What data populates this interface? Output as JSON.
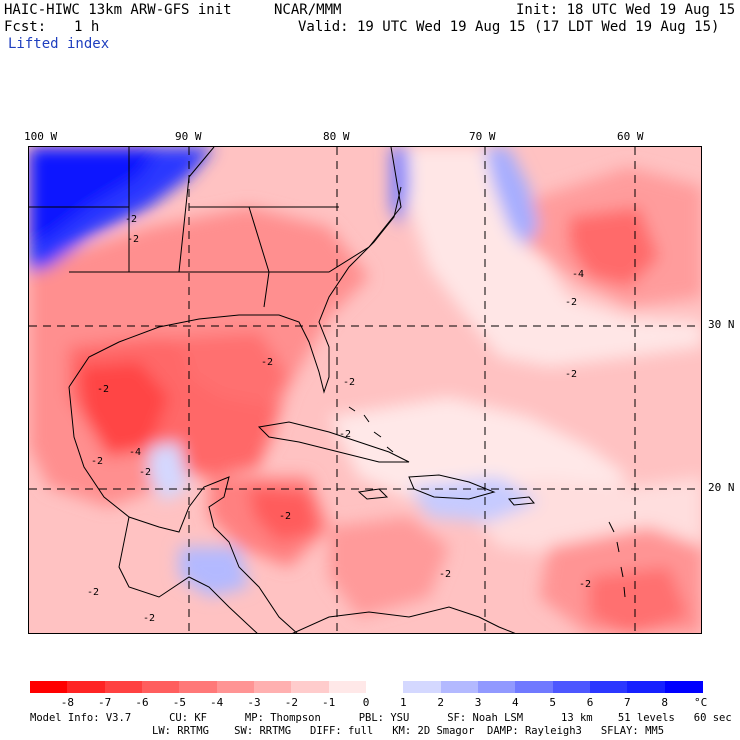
{
  "header": {
    "model_title": "HAIC-HIWC 13km ARW-GFS init",
    "org": "NCAR/MMM",
    "init": "Init: 18 UTC Wed 19 Aug 15",
    "fcst_label": "Fcst:",
    "fcst_value": "1 h",
    "valid": "Valid: 19 UTC Wed 19 Aug 15 (17 LDT Wed 19 Aug 15)",
    "field_name": "Lifted index"
  },
  "map": {
    "lon_labels": [
      "100 W",
      "90 W",
      "80 W",
      "70 W",
      "60 W"
    ],
    "lat_labels": [
      "30 N",
      "20 N"
    ],
    "contour_labels": [
      "-2",
      "-2",
      "-2",
      "-2",
      "-4",
      "-2",
      "-2",
      "-2",
      "-2",
      "-4",
      "-2",
      "-2",
      "-2",
      "-2",
      "-2",
      "-2",
      "-2"
    ]
  },
  "colorbar": {
    "unit": "°C",
    "labels": [
      "-8",
      "-7",
      "-6",
      "-5",
      "-4",
      "-3",
      "-2",
      "-1",
      "0",
      "1",
      "2",
      "3",
      "4",
      "5",
      "6",
      "7",
      "8"
    ],
    "colors": [
      "#ff0000",
      "#ff2424",
      "#ff4141",
      "#ff5e5e",
      "#ff7878",
      "#ff9494",
      "#ffb0b0",
      "#ffcccc",
      "#ffe8e8",
      "#ffffff",
      "#d4d8ff",
      "#b3b9ff",
      "#9199ff",
      "#7079ff",
      "#4d57ff",
      "#2b37ff",
      "#1620ff",
      "#0000ff"
    ]
  },
  "footer": {
    "line1": "Model Info: V3.7      CU: KF      MP: Thompson      PBL: YSU      SF: Noah LSM      13 km    51 levels   60 sec",
    "line2": "LW: RRTMG    SW: RRTMG   DIFF: full   KM: 2D Smagor  DAMP: Rayleigh3   SFLAY: MM5"
  }
}
